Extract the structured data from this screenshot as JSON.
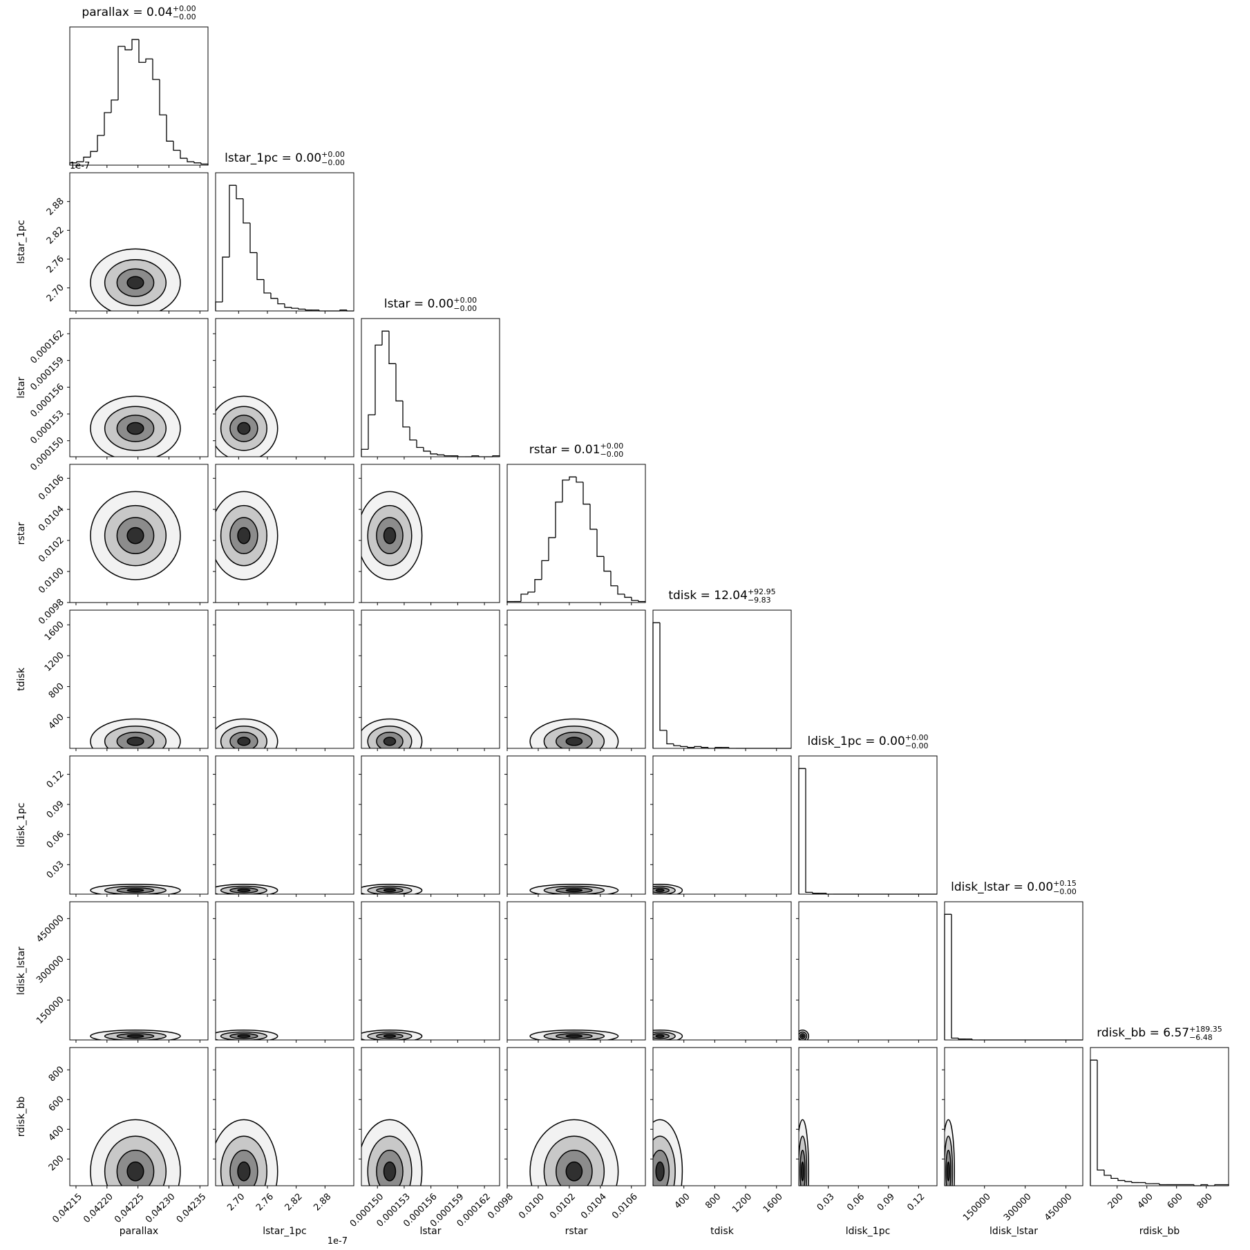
{
  "chart_data": {
    "type": "corner",
    "offset_text": "1e-7",
    "parameters": [
      {
        "name": "parallax",
        "title": "parallax = 0.04",
        "title_sup": "+0.00",
        "title_sub": "−0.00",
        "lim": [
          0.04214,
          0.042363
        ],
        "ticks": [
          0.04215,
          {
            "value": 0.0422,
            "label": "0.04220"
          },
          0.04225,
          {
            "value": 0.0423,
            "label": "0.04230"
          },
          0.04235
        ],
        "hist": [
          2,
          3,
          7,
          12,
          26,
          46,
          57,
          104,
          101,
          110,
          90,
          93,
          75,
          44,
          21,
          13,
          6,
          3,
          2,
          1
        ]
      },
      {
        "name": "lstar_1pc",
        "title": "lstar_1pc = 0.00",
        "title_sup": "+0.00",
        "title_sub": "−0.00",
        "lim": [
          2.652,
          2.94
        ],
        "ticks": [
          {
            "value": 2.7,
            "label": "2.70"
          },
          2.76,
          2.82,
          2.88
        ],
        "hist": [
          10,
          60,
          140,
          125,
          98,
          65,
          35,
          20,
          14,
          8,
          4,
          3,
          2,
          1,
          1,
          0,
          0,
          0,
          1,
          0
        ]
      },
      {
        "name": "lstar",
        "title": "lstar = 0.00",
        "title_sup": "+0.00",
        "title_sub": "−0.00",
        "lim": [
          0.0001482,
          0.0001637
        ],
        "ticks": [
          {
            "value": 0.00015,
            "label": "0.000150"
          },
          {
            "value": 0.000153,
            "label": "0.000153"
          },
          {
            "value": 0.000156,
            "label": "0.000156"
          },
          {
            "value": 0.000159,
            "label": "0.000159"
          },
          {
            "value": 0.000162,
            "label": "0.000162"
          }
        ],
        "hist": [
          8,
          45,
          120,
          135,
          100,
          60,
          32,
          18,
          10,
          6,
          3,
          2,
          1,
          1,
          0,
          0,
          1,
          0,
          0,
          1
        ]
      },
      {
        "name": "rstar",
        "title": "rstar = 0.01",
        "title_sup": "+0.00",
        "title_sub": "−0.00",
        "lim": [
          0.0098,
          0.01069
        ],
        "ticks": [
          0.0098,
          {
            "value": 0.01,
            "label": "0.0100"
          },
          0.0102,
          0.0104,
          0.0106
        ],
        "hist": [
          1,
          1,
          8,
          10,
          22,
          40,
          62,
          96,
          117,
          120,
          115,
          94,
          70,
          44,
          30,
          16,
          8,
          5,
          2,
          1
        ]
      },
      {
        "name": "tdisk",
        "title": "tdisk = 12.04",
        "title_sup": "+92.95",
        "title_sub": "−9.83",
        "lim": [
          0,
          1790
        ],
        "ticks": [
          400,
          800,
          1200,
          1600
        ],
        "hist": [
          140,
          20,
          5,
          3,
          2,
          1,
          2,
          1,
          0,
          1,
          1,
          0,
          0,
          0,
          0,
          0,
          0,
          0,
          0,
          0
        ]
      },
      {
        "name": "ldisk_1pc",
        "title": "ldisk_1pc = 0.00",
        "title_sup": "+0.00",
        "title_sub": "−0.00",
        "lim": [
          0.0006,
          0.1383
        ],
        "ticks": [
          0.03,
          0.06,
          0.09,
          0.12
        ],
        "hist": [
          140,
          2,
          1,
          1,
          0,
          0,
          0,
          0,
          0,
          0,
          0,
          0,
          0,
          0,
          0,
          0,
          0,
          0,
          0,
          0
        ]
      },
      {
        "name": "ldisk_lstar",
        "title": "ldisk_lstar = 0.00",
        "title_sup": "+0.15",
        "title_sub": "−0.00",
        "lim": [
          3000,
          512000
        ],
        "ticks": [
          150000,
          300000,
          450000
        ],
        "hist": [
          140,
          2,
          1,
          1,
          0,
          0,
          0,
          0,
          0,
          0,
          0,
          0,
          0,
          0,
          0,
          0,
          0,
          0,
          0,
          0
        ]
      },
      {
        "name": "rdisk_bb",
        "title": "rdisk_bb = 6.57",
        "title_sup": "+189.35",
        "title_sub": "−6.48",
        "lim": [
          20,
          950
        ],
        "ticks": [
          200,
          400,
          600,
          800
        ],
        "hist": [
          120,
          15,
          10,
          7,
          5,
          4,
          3,
          3,
          2,
          2,
          1,
          1,
          1,
          1,
          1,
          0,
          1,
          0,
          1,
          1
        ]
      }
    ]
  }
}
